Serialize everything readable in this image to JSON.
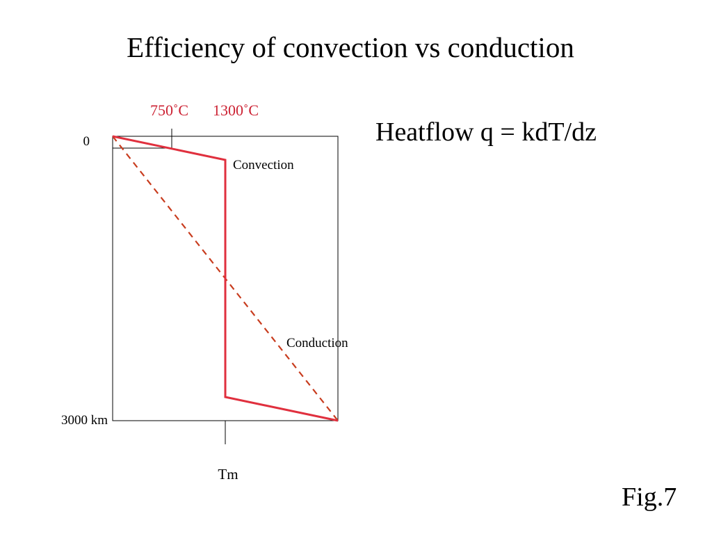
{
  "slide": {
    "title": "Efficiency of convection vs conduction",
    "heatflow_equation": "Heatflow q = kdT/dz",
    "figure_label": "Fig.7"
  },
  "diagram": {
    "temp_label_1": "750˚C",
    "temp_label_2": "1300˚C",
    "depth_top_label": "0",
    "depth_bottom_label": "3000 km",
    "melting_temp_label": "Tm",
    "convection_label": "Convection",
    "conduction_label": "Conduction",
    "colors": {
      "convection_line": "#e0303e",
      "conduction_line": "#c83c1e",
      "temperature_labels": "#cc2233",
      "axes": "#000000"
    }
  }
}
